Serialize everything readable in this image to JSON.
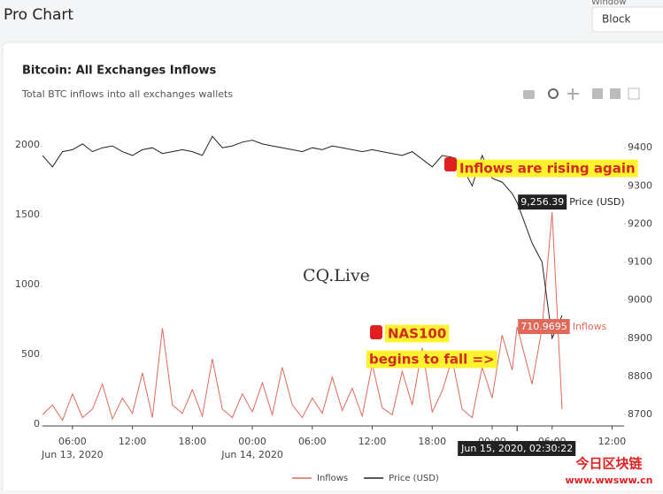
{
  "header": {
    "title": "Pro Chart",
    "window_label": "Window",
    "window_value": "Block"
  },
  "chart_data": {
    "type": "line",
    "title": "Bitcoin: All Exchanges Inflows",
    "subtitle": "Total BTC inflows into all exchanges wallets",
    "x": [
      3,
      4,
      5,
      6,
      7,
      8,
      9,
      10,
      11,
      12,
      13,
      14,
      15,
      16,
      17,
      18,
      19,
      20,
      21,
      22,
      23,
      24,
      25,
      26,
      27,
      28,
      29,
      30,
      31,
      32,
      33,
      34,
      35,
      36,
      37,
      38,
      39,
      40,
      41,
      42,
      43,
      44,
      45,
      46,
      47,
      48,
      49,
      50,
      50.5,
      52,
      53,
      54,
      55
    ],
    "xlim": [
      3,
      61.2
    ],
    "xticks": [
      {
        "value": 6,
        "label": "06:00"
      },
      {
        "value": 12,
        "label": "12:00"
      },
      {
        "value": 18,
        "label": "18:00"
      },
      {
        "value": 24,
        "label": "00:00"
      },
      {
        "value": 30,
        "label": "06:00"
      },
      {
        "value": 36,
        "label": "12:00"
      },
      {
        "value": 42,
        "label": "18:00"
      },
      {
        "value": 48,
        "label": "00:00"
      },
      {
        "value": 54,
        "label": "06:00"
      },
      {
        "value": 60,
        "label": "12:00"
      }
    ],
    "x_dates": [
      {
        "value": 6,
        "label": "Jun 13, 2020"
      },
      {
        "value": 24,
        "label": "Jun 14, 2020"
      }
    ],
    "ylim": [
      0,
      2100
    ],
    "yticks": [
      0,
      500,
      1000,
      1500,
      2000
    ],
    "y2lim": [
      8670,
      9440
    ],
    "y2ticks": [
      8700,
      8800,
      8900,
      9000,
      9100,
      9200,
      9300,
      9400
    ],
    "series": [
      {
        "name": "Inflows",
        "color": "#e0695a",
        "values": [
          80,
          150,
          40,
          230,
          60,
          120,
          300,
          50,
          200,
          90,
          380,
          60,
          700,
          150,
          90,
          260,
          70,
          480,
          120,
          60,
          230,
          100,
          310,
          80,
          420,
          150,
          60,
          200,
          90,
          350,
          110,
          270,
          70,
          440,
          130,
          80,
          390,
          150,
          560,
          100,
          250,
          480,
          120,
          60,
          420,
          200,
          650,
          400,
          710.9695,
          300,
          700,
          1530,
          120
        ]
      },
      {
        "name": "Price (USD)",
        "color": "#222222",
        "axis": "y2",
        "values": [
          9380,
          9350,
          9390,
          9395,
          9410,
          9390,
          9400,
          9405,
          9390,
          9380,
          9395,
          9400,
          9385,
          9390,
          9395,
          9390,
          9380,
          9430,
          9400,
          9405,
          9415,
          9420,
          9410,
          9405,
          9400,
          9395,
          9390,
          9400,
          9395,
          9405,
          9400,
          9395,
          9390,
          9395,
          9390,
          9385,
          9380,
          9390,
          9370,
          9350,
          9380,
          9375,
          9350,
          9300,
          9380,
          9320,
          9310,
          9280,
          9256.39,
          9150,
          9100,
          8900,
          8960
        ]
      }
    ],
    "hover": {
      "x_label": "Jun 15, 2020, 02:30:22",
      "price_label": "9,256.39"
    },
    "annotations": [
      "Inflows are rising again",
      "NAS100",
      "begins to fall =>"
    ],
    "watermarks": [
      "CQ.Live",
      "今日区块链",
      "www.wwsww.cn"
    ],
    "legend": "bottom",
    "grid": false
  }
}
